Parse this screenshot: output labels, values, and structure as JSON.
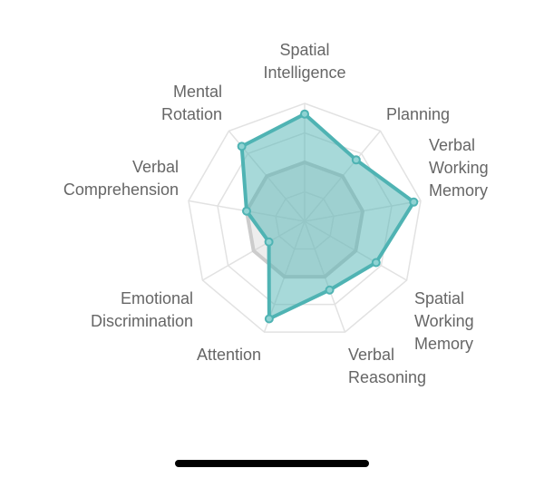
{
  "chart_data": {
    "type": "radar",
    "categories": [
      "Spatial Intelligence",
      "Planning",
      "Verbal Working Memory",
      "Spatial Working Memory",
      "Verbal Reasoning",
      "Attention",
      "Emotional Discrimination",
      "Verbal Comprehension",
      "Mental Rotation"
    ],
    "series": [
      {
        "color": "#cccccc",
        "values": [
          50,
          50,
          50,
          50,
          50,
          50,
          50,
          50,
          50
        ]
      },
      {
        "color": "#4fb3b3",
        "values": [
          91,
          68,
          94,
          70,
          62,
          88,
          35,
          50,
          83
        ]
      }
    ],
    "ylim": [
      0,
      100
    ],
    "yticks": [
      25,
      50,
      75,
      100
    ],
    "grid": true
  }
}
